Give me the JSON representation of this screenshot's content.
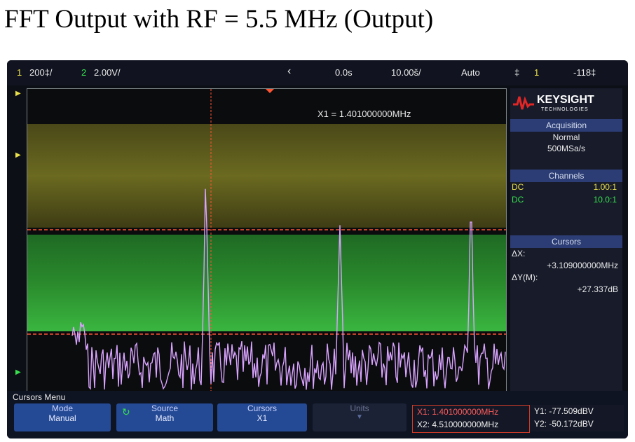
{
  "caption": "FFT Output with RF = 5.5 MHz (Output)",
  "status_bar": {
    "ch1_num": "1",
    "ch1_scale": "200‡/",
    "ch2_num": "2",
    "ch2_scale": "2.00V/",
    "time_delay": "0.0s",
    "time_scale": "10.00š/",
    "trigger_mode": "Auto",
    "trigger_ch": "1",
    "trigger_level": "-118‡"
  },
  "cursor_label": "X1 = 1.401000000MHz",
  "logo": {
    "brand": "KEYSIGHT",
    "tagline": "TECHNOLOGIES"
  },
  "acquisition": {
    "title": "Acquisition",
    "mode": "Normal",
    "rate": "500MSa/s"
  },
  "channels": {
    "title": "Channels",
    "rows": [
      {
        "coupling": "DC",
        "ratio": "1.00:1"
      },
      {
        "coupling": "DC",
        "ratio": "10.0:1"
      }
    ]
  },
  "cursors_panel": {
    "title": "Cursors",
    "dx_label": "ΔX:",
    "dx_value": "+3.109000000MHz",
    "dy_label": "ΔY(M):",
    "dy_value": "+27.337dB"
  },
  "bottom": {
    "menu_title": "Cursors Menu",
    "mode": {
      "label": "Mode",
      "value": "Manual"
    },
    "source": {
      "label": "Source",
      "value": "Math"
    },
    "cursors": {
      "label": "Cursors",
      "value": "X1"
    },
    "units": {
      "label": "Units"
    },
    "x1": "X1: 1.401000000MHz",
    "x2": "X2: 4.510000000MHz",
    "y1": "Y1: -77.509dBV",
    "y2": "Y2: -50.172dBV"
  },
  "colors": {
    "ch1": "#e9e04a",
    "ch2": "#37e24e",
    "math_trace": "#d9a3ff",
    "cursor": "#ff5533",
    "keysight_red": "#e12626",
    "softkey": "#254a95"
  },
  "spectrum": {
    "peak_positions_fraction": [
      0.081,
      0.373,
      0.653,
      0.927
    ],
    "peak_heights_fraction": [
      0.72,
      0.33,
      0.45,
      0.44
    ]
  }
}
